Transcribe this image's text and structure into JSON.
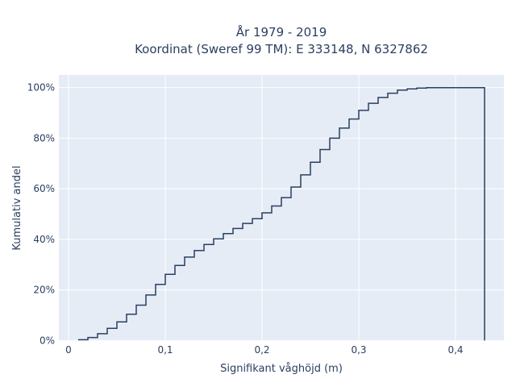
{
  "chart_data": {
    "type": "line",
    "line_shape": "step",
    "title_lines": [
      "År 1979 - 2019",
      "Koordinat (Sweref 99 TM): E 333148, N 6327862"
    ],
    "xlabel": "Signifikant våghöjd (m)",
    "ylabel": "Kumulativ andel",
    "xlim": [
      -0.01,
      0.45
    ],
    "ylim": [
      -0.002,
      1.05
    ],
    "x_ticks": [
      0,
      0.1,
      0.2,
      0.3,
      0.4
    ],
    "x_tick_labels": [
      "0",
      "0,1",
      "0,2",
      "0,3",
      "0,4"
    ],
    "y_ticks": [
      0,
      0.2,
      0.4,
      0.6,
      0.8,
      1.0
    ],
    "y_tick_labels": [
      "0%",
      "20%",
      "40%",
      "60%",
      "80%",
      "100%"
    ],
    "grid": true,
    "colors": {
      "plot_bg": "#e5ecf6",
      "grid": "#ffffff",
      "line": "#2a3f5f",
      "text": "#2a3f5f"
    },
    "series": [
      {
        "x": [
          0.01,
          0.02,
          0.03,
          0.04,
          0.05,
          0.06,
          0.07,
          0.08,
          0.09,
          0.1,
          0.11,
          0.12,
          0.13,
          0.14,
          0.15,
          0.16,
          0.17,
          0.18,
          0.19,
          0.2,
          0.21,
          0.22,
          0.23,
          0.24,
          0.25,
          0.26,
          0.27,
          0.28,
          0.29,
          0.3,
          0.31,
          0.32,
          0.33,
          0.34,
          0.35,
          0.36,
          0.37,
          0.38,
          0.39,
          0.4,
          0.41,
          0.42,
          0.43,
          0.43
        ],
        "y": [
          0.003,
          0.012,
          0.027,
          0.048,
          0.074,
          0.104,
          0.14,
          0.18,
          0.222,
          0.262,
          0.297,
          0.33,
          0.356,
          0.38,
          0.402,
          0.423,
          0.443,
          0.463,
          0.482,
          0.505,
          0.532,
          0.565,
          0.607,
          0.655,
          0.705,
          0.755,
          0.8,
          0.84,
          0.876,
          0.91,
          0.938,
          0.961,
          0.978,
          0.99,
          0.995,
          0.998,
          1.0,
          1.0,
          1.0,
          1.0,
          1.0,
          1.0,
          1.0,
          0.0
        ]
      }
    ]
  }
}
